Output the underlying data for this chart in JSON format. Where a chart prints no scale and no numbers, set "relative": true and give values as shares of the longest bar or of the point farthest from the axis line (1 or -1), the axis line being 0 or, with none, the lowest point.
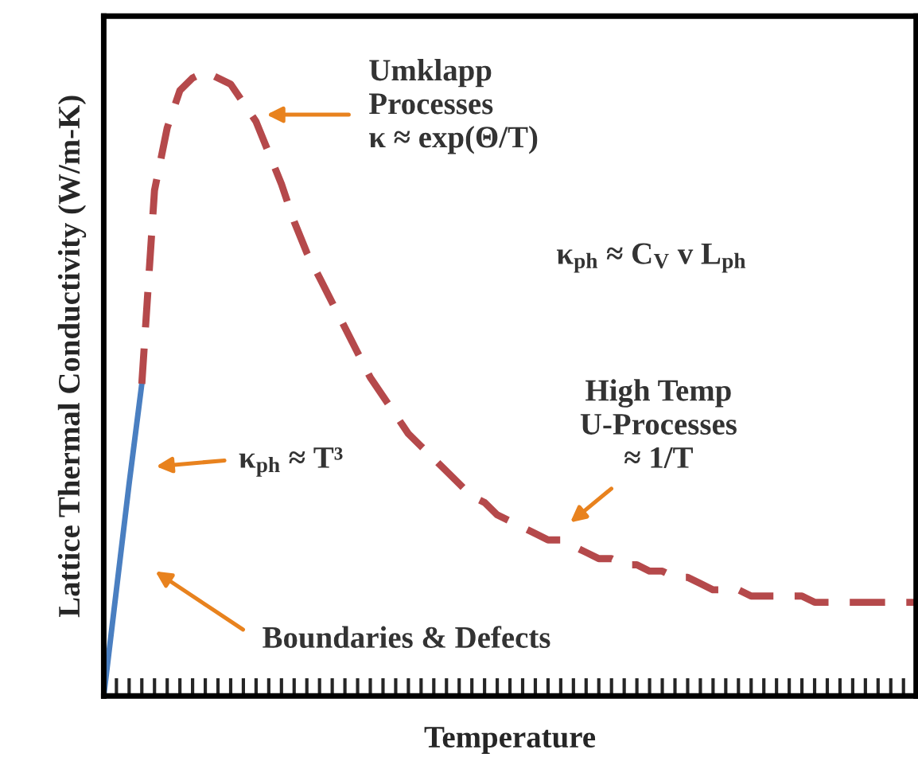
{
  "chart_data": {
    "type": "line",
    "relative": true,
    "xlabel": "Temperature",
    "ylabel": "Lattice Thermal Conductivity (W/m-K)",
    "grid": false,
    "marker": "none",
    "categories": [
      null,
      null,
      null,
      null,
      null,
      null,
      null,
      null,
      null,
      null,
      null,
      null,
      null,
      null,
      null,
      null,
      null,
      null,
      null,
      null,
      null,
      null,
      null,
      null,
      null,
      null,
      null,
      null,
      null,
      null,
      null,
      null,
      null,
      null,
      null,
      null,
      null,
      null,
      null,
      null,
      null,
      null,
      null,
      null,
      null,
      null,
      null,
      null,
      null,
      null,
      null,
      null,
      null,
      null,
      null,
      null,
      null,
      null,
      null,
      null,
      null,
      null,
      null,
      null,
      null
    ],
    "series": [
      {
        "color": "#4a7fc1",
        "line_style": "solid",
        "values": [
          0,
          0.17,
          0.34,
          0.5,
          null,
          null,
          null,
          null,
          null,
          null,
          null,
          null,
          null,
          null,
          null,
          null,
          null,
          null,
          null,
          null,
          null,
          null,
          null,
          null,
          null,
          null,
          null,
          null,
          null,
          null,
          null,
          null,
          null,
          null,
          null,
          null,
          null,
          null,
          null,
          null,
          null,
          null,
          null,
          null,
          null,
          null,
          null,
          null,
          null,
          null,
          null,
          null,
          null,
          null,
          null,
          null,
          null,
          null,
          null,
          null,
          null,
          null,
          null,
          null,
          null
        ]
      },
      {
        "color": "#b5494b",
        "line_style": "dashed",
        "values": [
          null,
          null,
          null,
          0.5,
          0.81,
          0.91,
          0.97,
          0.99,
          1.0,
          0.99,
          0.98,
          0.95,
          0.92,
          0.87,
          0.82,
          0.76,
          0.71,
          0.67,
          0.63,
          0.59,
          0.55,
          0.51,
          0.48,
          0.45,
          0.42,
          0.4,
          0.38,
          0.36,
          0.34,
          0.32,
          0.31,
          0.29,
          0.28,
          0.27,
          0.26,
          0.25,
          0.25,
          0.24,
          0.23,
          0.22,
          0.22,
          0.21,
          0.21,
          0.2,
          0.2,
          0.19,
          0.19,
          0.18,
          0.17,
          0.17,
          0.17,
          0.16,
          0.16,
          0.16,
          0.16,
          0.16,
          0.15,
          0.15,
          0.15,
          0.15,
          0.15,
          0.15,
          0.15,
          0.15,
          0.15
        ]
      }
    ],
    "annotations": [
      "Umklapp\nProcesses\nκ ≈ exp(Θ/T)",
      "κ$_{ph}$ ≈ C$_{V}$ v L$_{ph}$",
      "High Temp\nU-Processes\n≈ 1/T",
      "κ$_{ph}$ ≈ T³",
      "Boundaries & Defects"
    ]
  }
}
